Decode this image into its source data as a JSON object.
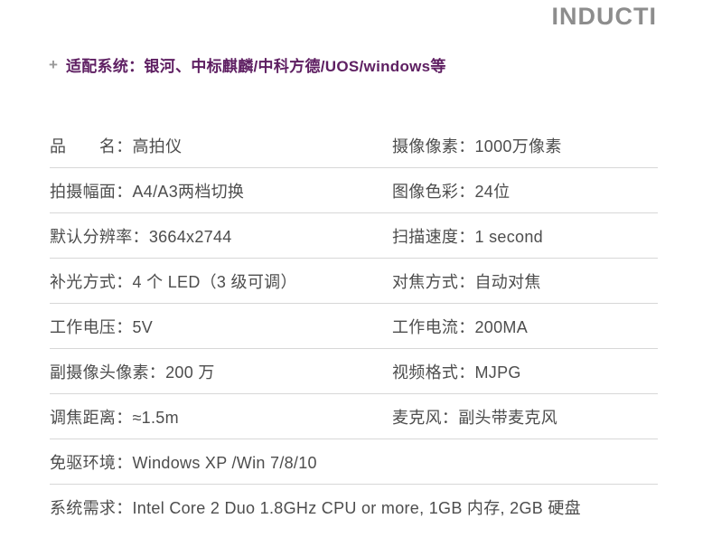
{
  "brand": {
    "watermark": "INDUCTI"
  },
  "header": {
    "plus_icon": "+",
    "compatible_systems": "适配系统：银河、中标麒麟/中科方德/UOS/windows等"
  },
  "colors": {
    "accent_purple": "#5e1f62",
    "body_text": "#4d4d4d",
    "watermark_gray": "#8d8d8d",
    "divider_gray": "#d7d7d7"
  },
  "table": {
    "rows": [
      {
        "cells": [
          {
            "label": "品　　名：",
            "value": "高拍仪"
          },
          {
            "label": "摄像像素：",
            "value": "1000万像素"
          }
        ]
      },
      {
        "cells": [
          {
            "label": "拍摄幅面：",
            "value": "A4/A3两档切换"
          },
          {
            "label": "图像色彩：",
            "value": "24位"
          }
        ]
      },
      {
        "cells": [
          {
            "label": "默认分辨率：",
            "value": "3664x2744"
          },
          {
            "label": "扫描速度：",
            "value": "1 second"
          }
        ]
      },
      {
        "cells": [
          {
            "label": "补光方式：",
            "value": "4 个 LED（3 级可调）"
          },
          {
            "label": "对焦方式：",
            "value": "自动对焦"
          }
        ]
      },
      {
        "cells": [
          {
            "label": "工作电压：",
            "value": "5V"
          },
          {
            "label": "工作电流：",
            "value": "200MA"
          }
        ]
      },
      {
        "cells": [
          {
            "label": "副摄像头像素：",
            "value": "200 万"
          },
          {
            "label": "视频格式：",
            "value": "MJPG"
          }
        ]
      },
      {
        "cells": [
          {
            "label": "调焦距离：",
            "value": "≈1.5m"
          },
          {
            "label": "麦克风：",
            "value": "副头带麦克风"
          }
        ]
      },
      {
        "cells": [
          {
            "label": "免驱环境：",
            "value": "Windows XP /Win 7/8/10"
          }
        ]
      },
      {
        "cells": [
          {
            "label": "系统需求：",
            "value": "Intel Core 2 Duo 1.8GHz CPU or more, 1GB 内存, 2GB 硬盘"
          }
        ]
      }
    ]
  }
}
